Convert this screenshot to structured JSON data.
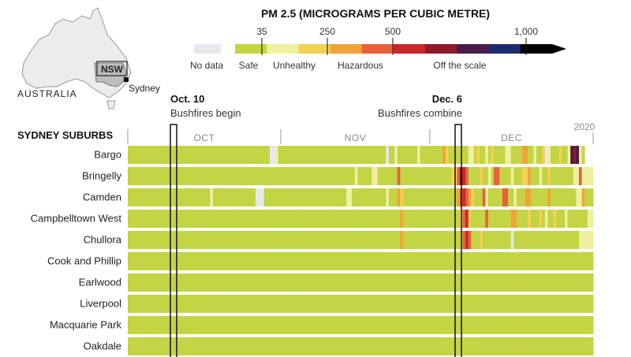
{
  "chart_data": {
    "type": "heatmap",
    "title": "PM 2.5 (MICROGRAMS PER CUBIC METRE)",
    "row_header": "SYDNEY SUBURBS",
    "inset_map": {
      "country": "AUSTRALIA",
      "state": "NSW",
      "city": "Sydney"
    },
    "legend": {
      "no_data_label": "No data",
      "bands": [
        {
          "label": "Safe",
          "from": 0,
          "to": 35
        },
        {
          "label": "Unhealthy",
          "from": 35,
          "to": 250
        },
        {
          "label": "Hazardous",
          "from": 250,
          "to": 500
        },
        {
          "label": "Off the scale",
          "from": 500,
          "to": 1000
        }
      ],
      "ticks": [
        "35",
        "250",
        "500",
        "1,000"
      ],
      "colors": [
        "#c3d444",
        "#eef0a0",
        "#f4d055",
        "#f0a33a",
        "#e8603a",
        "#c8282a",
        "#8e1a2a",
        "#4a1a4a",
        "#1c2a6e",
        "#000000"
      ]
    },
    "months": [
      "OCT",
      "NOV",
      "DEC"
    ],
    "year_label": "2020",
    "annotations": [
      {
        "date": "Oct. 10",
        "text": "Bushfires begin"
      },
      {
        "date": "Dec. 6",
        "text": "Bushfires combine"
      }
    ],
    "rows": [
      "Bargo",
      "Bringelly",
      "Camden",
      "Campbelltown West",
      "Chullora",
      "Cook and Phillip",
      "Earlwood",
      "Liverpool",
      "Macquarie Park",
      "Oakdale"
    ],
    "levels_key": "-1 = no data, 0 = safe, 1-2 = unhealthy, 3-5 = hazardous, 6-9 = off the scale",
    "daily_levels": [
      [
        0,
        0,
        0,
        0,
        0,
        0,
        0,
        0,
        0,
        0,
        0,
        0,
        0,
        0,
        0,
        0,
        0,
        0,
        0,
        0,
        0,
        0,
        0,
        0,
        0,
        0,
        0,
        0,
        0,
        0,
        0,
        0,
        0,
        0,
        0,
        0,
        0,
        0,
        0,
        0,
        0,
        0,
        0,
        0,
        0,
        0,
        0,
        0,
        0,
        0,
        -1,
        -1,
        1,
        0,
        0,
        0,
        0,
        0,
        0,
        0,
        0,
        0,
        0,
        0,
        0,
        0,
        0,
        0,
        0,
        0,
        0,
        0,
        0,
        0,
        0,
        0,
        0,
        0,
        0,
        0,
        0,
        0,
        0,
        0,
        0,
        0,
        0,
        0,
        0,
        0,
        0,
        -1,
        0,
        0,
        1,
        0,
        0,
        0,
        0,
        0,
        0,
        0,
        1,
        0,
        0,
        0,
        0,
        0,
        0,
        0,
        0,
        3,
        2,
        0,
        0,
        0,
        0,
        0,
        0,
        0,
        1,
        1,
        0,
        2,
        0,
        0,
        1,
        0,
        2,
        0,
        0,
        0,
        0,
        1,
        1,
        0,
        0,
        0,
        0,
        3,
        3,
        0,
        0,
        1,
        0,
        0,
        2,
        -1,
        1,
        0,
        0,
        0,
        2,
        0,
        0,
        1,
        7,
        6,
        7,
        1,
        0
      ],
      [
        0,
        0,
        0,
        0,
        0,
        0,
        0,
        0,
        0,
        0,
        0,
        0,
        0,
        0,
        0,
        0,
        0,
        0,
        0,
        0,
        0,
        0,
        0,
        0,
        0,
        0,
        0,
        0,
        0,
        0,
        0,
        0,
        0,
        0,
        0,
        0,
        0,
        0,
        0,
        0,
        0,
        0,
        0,
        0,
        0,
        0,
        0,
        0,
        0,
        0,
        0,
        0,
        0,
        0,
        0,
        0,
        0,
        0,
        0,
        0,
        0,
        0,
        0,
        0,
        0,
        0,
        0,
        0,
        0,
        0,
        0,
        0,
        0,
        0,
        0,
        0,
        0,
        0,
        0,
        0,
        1,
        0,
        0,
        0,
        0,
        0,
        1,
        1,
        0,
        0,
        0,
        0,
        0,
        0,
        0,
        4,
        0,
        0,
        0,
        0,
        0,
        0,
        0,
        0,
        0,
        0,
        0,
        0,
        0,
        0,
        0,
        0,
        0,
        0,
        2,
        2,
        4,
        6,
        5,
        4,
        0,
        0,
        0,
        0,
        2,
        0,
        0,
        1,
        0,
        4,
        4,
        0,
        0,
        0,
        0,
        1,
        0,
        0,
        0,
        2,
        2,
        3,
        0,
        0,
        0,
        1,
        0,
        0,
        2,
        0,
        0,
        0,
        0,
        0,
        0,
        0,
        0,
        1,
        1,
        4,
        1,
        1,
        1,
        1
      ],
      [
        0,
        0,
        0,
        0,
        0,
        0,
        0,
        0,
        0,
        0,
        0,
        0,
        0,
        0,
        0,
        0,
        0,
        0,
        0,
        0,
        0,
        0,
        0,
        0,
        0,
        0,
        0,
        0,
        0,
        1,
        0,
        0,
        0,
        0,
        0,
        0,
        0,
        0,
        0,
        0,
        0,
        0,
        0,
        0,
        0,
        -1,
        -1,
        -1,
        0,
        0,
        0,
        0,
        0,
        0,
        0,
        0,
        0,
        0,
        0,
        0,
        0,
        0,
        0,
        0,
        0,
        0,
        0,
        0,
        0,
        0,
        0,
        0,
        0,
        0,
        0,
        0,
        0,
        1,
        1,
        0,
        0,
        0,
        0,
        0,
        0,
        0,
        0,
        0,
        0,
        0,
        0,
        1,
        0,
        0,
        0,
        3,
        2,
        0,
        0,
        0,
        0,
        0,
        0,
        0,
        0,
        0,
        0,
        0,
        0,
        0,
        0,
        0,
        0,
        0,
        0,
        0,
        3,
        4,
        5,
        4,
        3,
        2,
        0,
        0,
        0,
        4,
        1,
        0,
        0,
        0,
        0,
        0,
        4,
        4,
        0,
        0,
        1,
        0,
        0,
        0,
        3,
        3,
        0,
        0,
        0,
        0,
        0,
        0,
        3,
        0,
        0,
        0,
        0,
        0,
        0,
        0,
        0,
        0,
        1,
        1,
        3,
        0,
        0,
        0
      ],
      [
        0,
        0,
        0,
        0,
        0,
        0,
        0,
        0,
        0,
        0,
        0,
        0,
        0,
        0,
        0,
        0,
        0,
        0,
        0,
        0,
        0,
        0,
        0,
        0,
        0,
        0,
        0,
        0,
        0,
        0,
        0,
        0,
        0,
        0,
        0,
        0,
        0,
        0,
        0,
        0,
        0,
        0,
        0,
        0,
        0,
        0,
        0,
        0,
        0,
        0,
        0,
        0,
        0,
        0,
        0,
        0,
        0,
        0,
        0,
        0,
        0,
        0,
        0,
        0,
        0,
        0,
        0,
        0,
        0,
        0,
        0,
        0,
        0,
        0,
        0,
        0,
        0,
        0,
        0,
        0,
        0,
        0,
        0,
        0,
        0,
        0,
        0,
        0,
        0,
        0,
        0,
        0,
        0,
        0,
        0,
        0,
        3,
        0,
        0,
        0,
        0,
        0,
        0,
        0,
        0,
        0,
        0,
        0,
        0,
        0,
        0,
        0,
        0,
        0,
        0,
        0,
        0,
        2,
        4,
        5,
        2,
        0,
        0,
        0,
        0,
        0,
        4,
        0,
        0,
        0,
        0,
        0,
        0,
        0,
        0,
        3,
        3,
        0,
        0,
        0,
        0,
        2,
        0,
        0,
        0,
        2,
        0,
        1,
        0,
        0,
        2,
        0,
        0,
        0,
        1,
        0,
        0,
        0,
        0,
        0,
        0,
        0,
        1,
        1
      ],
      [
        0,
        0,
        0,
        0,
        0,
        0,
        0,
        0,
        0,
        0,
        0,
        0,
        0,
        0,
        0,
        0,
        0,
        0,
        0,
        0,
        0,
        0,
        0,
        0,
        0,
        0,
        0,
        0,
        0,
        0,
        0,
        0,
        0,
        0,
        0,
        0,
        0,
        0,
        0,
        0,
        0,
        0,
        0,
        0,
        0,
        0,
        0,
        0,
        0,
        0,
        0,
        0,
        0,
        0,
        0,
        0,
        0,
        0,
        0,
        0,
        0,
        0,
        0,
        0,
        0,
        0,
        0,
        0,
        0,
        0,
        0,
        0,
        0,
        0,
        0,
        0,
        0,
        0,
        0,
        0,
        0,
        0,
        0,
        0,
        0,
        0,
        0,
        0,
        0,
        0,
        0,
        0,
        0,
        0,
        0,
        0,
        3,
        0,
        0,
        0,
        0,
        0,
        0,
        0,
        0,
        0,
        0,
        0,
        0,
        0,
        0,
        0,
        0,
        0,
        0,
        0,
        0,
        0,
        4,
        5,
        4,
        0,
        0,
        0,
        2,
        0,
        0,
        0,
        0,
        0,
        0,
        0,
        0,
        0,
        0,
        -1,
        0,
        0,
        0,
        0,
        0,
        0,
        0,
        0,
        0,
        0,
        0,
        0,
        0,
        0,
        0,
        0,
        0,
        0,
        0,
        0,
        0,
        0,
        0,
        1,
        1,
        1,
        1,
        1
      ],
      [
        0,
        0,
        0,
        0,
        0,
        0,
        0,
        0,
        0,
        0,
        0,
        0,
        0,
        0,
        0,
        0,
        0,
        0,
        0,
        0,
        0,
        0,
        0,
        0,
        0,
        0,
        0,
        0,
        0,
        0,
        0,
        0,
        0,
        0,
        0,
        0,
        0,
        0,
        0,
        0,
        0,
        0,
        0,
        0,
        0,
        0,
        0,
        0,
        0,
        0,
        0,
        0,
        0,
        0,
        0,
        0,
        0,
        0,
        0,
        0,
        0,
        0,
        0,
        0,
        0,
        0,
        0,
        0,
        0,
        0,
        0,
        0,
        0,
        0,
        0,
        0,
        0,
        0,
        0,
        0,
        0,
        0,
        0,
        0,
        0,
        0,
        0,
        0,
        0,
        0,
        0,
        0,
        0,
        0,
        0,
        0,
        0,
        0,
        0,
        0,
        0,
        0,
        0,
        0,
        0,
        0,
        0,
        0,
        0,
        0,
        0,
        0,
        0,
        0,
        0,
        0,
        0,
        0,
        0,
        0,
        0,
        0,
        0,
        0,
        0,
        0,
        0,
        0,
        0,
        0,
        0,
        0,
        0,
        0,
        0,
        0,
        0,
        0,
        0,
        0,
        0,
        0,
        0,
        0,
        0,
        0,
        0,
        0,
        0,
        0,
        0,
        0,
        0,
        0,
        0,
        0,
        0,
        0,
        0,
        0,
        0,
        0,
        0,
        0
      ],
      [
        0,
        0,
        0,
        0,
        0,
        0,
        0,
        0,
        0,
        0,
        0,
        0,
        0,
        0,
        0,
        0,
        0,
        0,
        0,
        0,
        0,
        0,
        0,
        0,
        0,
        0,
        0,
        0,
        0,
        0,
        0,
        0,
        0,
        0,
        0,
        0,
        0,
        0,
        0,
        0,
        0,
        0,
        0,
        0,
        0,
        0,
        0,
        0,
        0,
        0,
        0,
        0,
        0,
        0,
        0,
        0,
        0,
        0,
        0,
        0,
        0,
        0,
        0,
        0,
        0,
        0,
        0,
        0,
        0,
        0,
        0,
        0,
        0,
        0,
        0,
        0,
        0,
        0,
        0,
        0,
        0,
        0,
        0,
        0,
        0,
        0,
        0,
        0,
        0,
        0,
        0,
        0,
        0,
        0,
        0,
        0,
        0,
        0,
        0,
        0,
        0,
        0,
        0,
        0,
        0,
        0,
        0,
        0,
        0,
        0,
        0,
        0,
        0,
        0,
        0,
        0,
        0,
        0,
        0,
        0,
        0,
        0,
        0,
        0,
        0,
        0,
        0,
        0,
        0,
        0,
        0,
        0,
        0,
        0,
        0,
        0,
        0,
        0,
        0,
        0,
        0,
        0,
        0,
        0,
        0,
        0,
        0,
        0,
        0,
        0,
        0,
        0,
        0,
        0,
        0,
        0,
        0,
        0,
        0,
        0,
        0,
        0,
        0,
        0
      ],
      [
        0,
        0,
        0,
        0,
        0,
        0,
        0,
        0,
        0,
        0,
        0,
        0,
        0,
        0,
        0,
        0,
        0,
        0,
        0,
        0,
        0,
        0,
        0,
        0,
        0,
        0,
        0,
        0,
        0,
        0,
        0,
        0,
        0,
        0,
        0,
        0,
        0,
        0,
        0,
        0,
        0,
        0,
        0,
        0,
        0,
        0,
        0,
        0,
        0,
        0,
        0,
        0,
        0,
        0,
        0,
        0,
        0,
        0,
        0,
        0,
        0,
        0,
        0,
        0,
        0,
        0,
        0,
        0,
        0,
        0,
        0,
        0,
        0,
        0,
        0,
        0,
        0,
        0,
        0,
        0,
        0,
        0,
        0,
        0,
        0,
        0,
        0,
        0,
        0,
        0,
        0,
        0,
        0,
        0,
        0,
        0,
        0,
        0,
        0,
        0,
        0,
        0,
        0,
        0,
        0,
        0,
        0,
        0,
        0,
        0,
        0,
        0,
        0,
        0,
        0,
        0,
        0,
        0,
        0,
        0,
        0,
        0,
        0,
        0,
        0,
        0,
        0,
        0,
        0,
        0,
        0,
        0,
        0,
        0,
        0,
        0,
        0,
        0,
        0,
        0,
        0,
        0,
        0,
        0,
        0,
        0,
        0,
        0,
        0,
        0,
        0,
        0,
        0,
        0,
        0,
        0,
        0,
        0,
        0,
        0,
        0,
        0,
        0,
        0
      ],
      [
        0,
        0,
        0,
        0,
        0,
        0,
        0,
        0,
        0,
        0,
        0,
        0,
        0,
        0,
        0,
        0,
        0,
        0,
        0,
        0,
        0,
        0,
        0,
        0,
        0,
        0,
        0,
        0,
        0,
        0,
        0,
        0,
        0,
        0,
        0,
        0,
        0,
        0,
        0,
        0,
        0,
        0,
        0,
        0,
        0,
        0,
        0,
        0,
        0,
        0,
        0,
        0,
        0,
        0,
        0,
        0,
        0,
        0,
        0,
        0,
        0,
        0,
        0,
        0,
        0,
        0,
        0,
        0,
        0,
        0,
        0,
        0,
        0,
        0,
        0,
        0,
        0,
        0,
        0,
        0,
        0,
        0,
        0,
        0,
        0,
        0,
        0,
        0,
        0,
        0,
        0,
        0,
        0,
        0,
        0,
        0,
        0,
        0,
        0,
        0,
        0,
        0,
        0,
        0,
        0,
        0,
        0,
        0,
        0,
        0,
        0,
        0,
        0,
        0,
        0,
        0,
        0,
        0,
        0,
        0,
        0,
        0,
        0,
        0,
        0,
        0,
        0,
        0,
        0,
        0,
        0,
        0,
        0,
        0,
        0,
        0,
        0,
        0,
        0,
        0,
        0,
        0,
        0,
        0,
        0,
        0,
        0,
        0,
        0,
        0,
        0,
        0,
        0,
        0,
        0,
        0,
        0,
        0,
        0,
        0,
        0,
        0,
        0,
        0
      ],
      [
        0,
        0,
        0,
        0,
        0,
        0,
        0,
        0,
        0,
        0,
        0,
        0,
        0,
        0,
        0,
        0,
        0,
        0,
        0,
        0,
        0,
        0,
        0,
        0,
        0,
        0,
        0,
        0,
        0,
        0,
        0,
        0,
        0,
        0,
        0,
        0,
        0,
        0,
        0,
        0,
        0,
        0,
        0,
        0,
        0,
        0,
        0,
        0,
        0,
        0,
        0,
        0,
        0,
        0,
        0,
        0,
        0,
        0,
        0,
        0,
        0,
        0,
        0,
        0,
        0,
        0,
        0,
        0,
        0,
        0,
        0,
        0,
        0,
        0,
        0,
        0,
        0,
        0,
        0,
        0,
        0,
        0,
        0,
        0,
        0,
        0,
        0,
        0,
        0,
        0,
        0,
        0,
        0,
        0,
        0,
        0,
        0,
        0,
        0,
        0,
        0,
        0,
        0,
        0,
        0,
        0,
        0,
        0,
        0,
        0,
        0,
        0,
        0,
        0,
        0,
        0,
        0,
        0,
        0,
        0,
        0,
        0,
        0,
        0,
        0,
        0,
        0,
        0,
        0,
        0,
        0,
        0,
        0,
        0,
        0,
        0,
        0,
        0,
        0,
        0,
        0,
        0,
        0,
        0,
        0,
        0,
        0,
        0,
        0,
        0,
        0,
        0,
        0,
        0,
        0,
        0,
        0,
        0,
        0,
        0,
        0,
        0,
        0,
        0
      ]
    ]
  }
}
